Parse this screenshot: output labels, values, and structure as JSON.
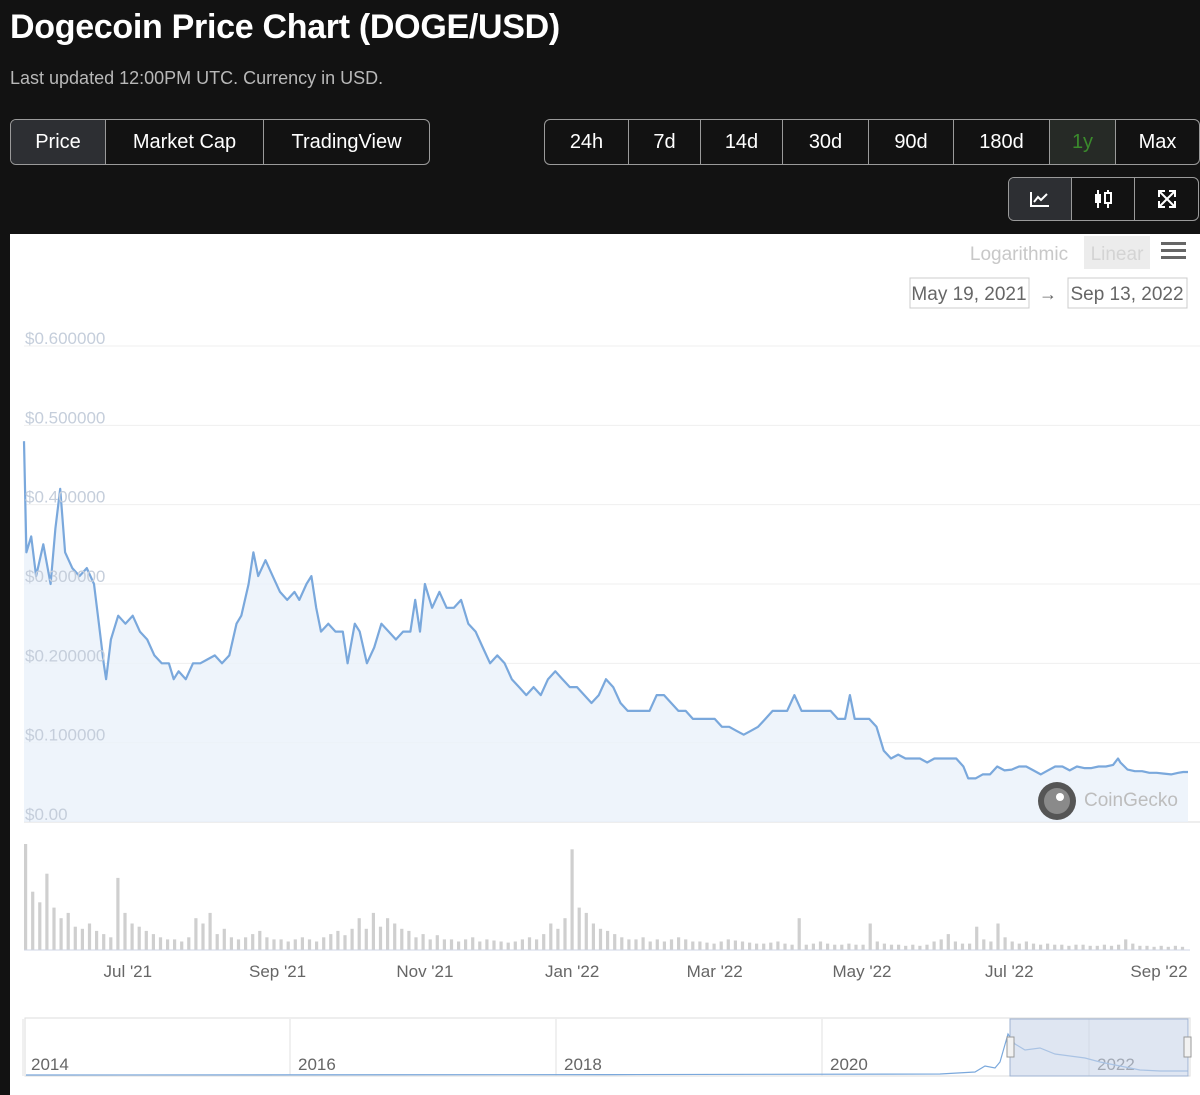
{
  "header": {
    "title": "Dogecoin Price Chart (DOGE/USD)",
    "subtitle": "Last updated 12:00PM UTC. Currency in USD."
  },
  "chart_type_tabs": [
    {
      "label": "Price",
      "active": true
    },
    {
      "label": "Market Cap",
      "active": false
    },
    {
      "label": "TradingView",
      "active": false
    }
  ],
  "range_tabs": [
    {
      "label": "24h",
      "active": false
    },
    {
      "label": "7d",
      "active": false
    },
    {
      "label": "14d",
      "active": false
    },
    {
      "label": "30d",
      "active": false
    },
    {
      "label": "90d",
      "active": false
    },
    {
      "label": "180d",
      "active": false
    },
    {
      "label": "1y",
      "active": true
    },
    {
      "label": "Max",
      "active": false
    }
  ],
  "view_toggle": [
    {
      "icon": "line-chart-icon",
      "active": true
    },
    {
      "icon": "candlestick-icon",
      "active": false
    },
    {
      "icon": "fullscreen-icon",
      "active": false
    }
  ],
  "scale_toggle": {
    "logarithmic": "Logarithmic",
    "linear": "Linear",
    "active": "linear",
    "menu_icon": "hamburger-menu-icon"
  },
  "date_range": {
    "from": "May 19, 2021",
    "arrow": "→",
    "to": "Sep 13, 2022"
  },
  "watermark": {
    "text": "CoinGecko",
    "icon": "coingecko-logo-icon"
  },
  "colors": {
    "line": "#7aa8dc",
    "fill": "#eaf1fa",
    "volume": "#cfcfcf",
    "navigator_fill": "#c9d6ea"
  },
  "chart_data": {
    "type": "area",
    "x_start": "2021-05-19",
    "x_end": "2022-09-13",
    "yticks": [
      "$0.00",
      "$0.100000",
      "$0.200000",
      "$0.300000",
      "$0.400000",
      "$0.500000",
      "$0.600000"
    ],
    "ylim": [
      0,
      0.6
    ],
    "xticks": [
      {
        "label": "Jul '21",
        "date": "2021-07-01"
      },
      {
        "label": "Sep '21",
        "date": "2021-09-01"
      },
      {
        "label": "Nov '21",
        "date": "2021-11-01"
      },
      {
        "label": "Jan '22",
        "date": "2022-01-01"
      },
      {
        "label": "Mar '22",
        "date": "2022-03-01"
      },
      {
        "label": "May '22",
        "date": "2022-05-01"
      },
      {
        "label": "Jul '22",
        "date": "2022-07-01"
      },
      {
        "label": "Sep '22",
        "date": "2022-09-01"
      }
    ],
    "series": [
      {
        "points": [
          [
            "2021-05-19",
            0.48
          ],
          [
            "2021-05-20",
            0.34
          ],
          [
            "2021-05-22",
            0.36
          ],
          [
            "2021-05-24",
            0.31
          ],
          [
            "2021-05-27",
            0.35
          ],
          [
            "2021-05-30",
            0.3
          ],
          [
            "2021-06-01",
            0.37
          ],
          [
            "2021-06-03",
            0.42
          ],
          [
            "2021-06-05",
            0.34
          ],
          [
            "2021-06-08",
            0.32
          ],
          [
            "2021-06-11",
            0.31
          ],
          [
            "2021-06-14",
            0.32
          ],
          [
            "2021-06-17",
            0.3
          ],
          [
            "2021-06-19",
            0.25
          ],
          [
            "2021-06-21",
            0.2
          ],
          [
            "2021-06-22",
            0.18
          ],
          [
            "2021-06-24",
            0.23
          ],
          [
            "2021-06-27",
            0.26
          ],
          [
            "2021-06-30",
            0.25
          ],
          [
            "2021-07-03",
            0.26
          ],
          [
            "2021-07-06",
            0.24
          ],
          [
            "2021-07-09",
            0.23
          ],
          [
            "2021-07-12",
            0.21
          ],
          [
            "2021-07-15",
            0.2
          ],
          [
            "2021-07-18",
            0.2
          ],
          [
            "2021-07-20",
            0.18
          ],
          [
            "2021-07-22",
            0.19
          ],
          [
            "2021-07-25",
            0.18
          ],
          [
            "2021-07-28",
            0.2
          ],
          [
            "2021-07-31",
            0.2
          ],
          [
            "2021-08-03",
            0.205
          ],
          [
            "2021-08-06",
            0.21
          ],
          [
            "2021-08-09",
            0.2
          ],
          [
            "2021-08-12",
            0.21
          ],
          [
            "2021-08-15",
            0.25
          ],
          [
            "2021-08-17",
            0.26
          ],
          [
            "2021-08-20",
            0.3
          ],
          [
            "2021-08-22",
            0.34
          ],
          [
            "2021-08-24",
            0.31
          ],
          [
            "2021-08-27",
            0.33
          ],
          [
            "2021-08-30",
            0.31
          ],
          [
            "2021-09-02",
            0.29
          ],
          [
            "2021-09-05",
            0.28
          ],
          [
            "2021-09-08",
            0.29
          ],
          [
            "2021-09-10",
            0.28
          ],
          [
            "2021-09-13",
            0.3
          ],
          [
            "2021-09-15",
            0.31
          ],
          [
            "2021-09-17",
            0.27
          ],
          [
            "2021-09-19",
            0.24
          ],
          [
            "2021-09-22",
            0.25
          ],
          [
            "2021-09-25",
            0.24
          ],
          [
            "2021-09-28",
            0.24
          ],
          [
            "2021-09-30",
            0.2
          ],
          [
            "2021-10-03",
            0.25
          ],
          [
            "2021-10-05",
            0.24
          ],
          [
            "2021-10-08",
            0.2
          ],
          [
            "2021-10-11",
            0.22
          ],
          [
            "2021-10-14",
            0.25
          ],
          [
            "2021-10-17",
            0.24
          ],
          [
            "2021-10-20",
            0.23
          ],
          [
            "2021-10-23",
            0.24
          ],
          [
            "2021-10-26",
            0.24
          ],
          [
            "2021-10-28",
            0.28
          ],
          [
            "2021-10-30",
            0.24
          ],
          [
            "2021-11-01",
            0.3
          ],
          [
            "2021-11-04",
            0.27
          ],
          [
            "2021-11-07",
            0.29
          ],
          [
            "2021-11-10",
            0.27
          ],
          [
            "2021-11-13",
            0.27
          ],
          [
            "2021-11-16",
            0.28
          ],
          [
            "2021-11-19",
            0.25
          ],
          [
            "2021-11-22",
            0.24
          ],
          [
            "2021-11-25",
            0.22
          ],
          [
            "2021-11-28",
            0.2
          ],
          [
            "2021-12-01",
            0.21
          ],
          [
            "2021-12-04",
            0.2
          ],
          [
            "2021-12-07",
            0.18
          ],
          [
            "2021-12-10",
            0.17
          ],
          [
            "2021-12-13",
            0.16
          ],
          [
            "2021-12-16",
            0.17
          ],
          [
            "2021-12-19",
            0.16
          ],
          [
            "2021-12-22",
            0.18
          ],
          [
            "2021-12-25",
            0.19
          ],
          [
            "2021-12-28",
            0.18
          ],
          [
            "2021-12-31",
            0.17
          ],
          [
            "2022-01-03",
            0.17
          ],
          [
            "2022-01-06",
            0.16
          ],
          [
            "2022-01-09",
            0.15
          ],
          [
            "2022-01-12",
            0.16
          ],
          [
            "2022-01-15",
            0.18
          ],
          [
            "2022-01-18",
            0.17
          ],
          [
            "2022-01-21",
            0.15
          ],
          [
            "2022-01-24",
            0.14
          ],
          [
            "2022-01-27",
            0.14
          ],
          [
            "2022-01-30",
            0.14
          ],
          [
            "2022-02-02",
            0.14
          ],
          [
            "2022-02-05",
            0.16
          ],
          [
            "2022-02-08",
            0.16
          ],
          [
            "2022-02-11",
            0.15
          ],
          [
            "2022-02-14",
            0.14
          ],
          [
            "2022-02-17",
            0.14
          ],
          [
            "2022-02-20",
            0.13
          ],
          [
            "2022-02-23",
            0.13
          ],
          [
            "2022-02-26",
            0.13
          ],
          [
            "2022-03-01",
            0.13
          ],
          [
            "2022-03-04",
            0.12
          ],
          [
            "2022-03-07",
            0.12
          ],
          [
            "2022-03-10",
            0.115
          ],
          [
            "2022-03-13",
            0.11
          ],
          [
            "2022-03-16",
            0.115
          ],
          [
            "2022-03-19",
            0.12
          ],
          [
            "2022-03-22",
            0.13
          ],
          [
            "2022-03-25",
            0.14
          ],
          [
            "2022-03-28",
            0.14
          ],
          [
            "2022-03-31",
            0.14
          ],
          [
            "2022-04-03",
            0.16
          ],
          [
            "2022-04-06",
            0.14
          ],
          [
            "2022-04-09",
            0.14
          ],
          [
            "2022-04-12",
            0.14
          ],
          [
            "2022-04-15",
            0.14
          ],
          [
            "2022-04-18",
            0.14
          ],
          [
            "2022-04-21",
            0.13
          ],
          [
            "2022-04-24",
            0.13
          ],
          [
            "2022-04-26",
            0.16
          ],
          [
            "2022-04-28",
            0.13
          ],
          [
            "2022-05-01",
            0.13
          ],
          [
            "2022-05-04",
            0.13
          ],
          [
            "2022-05-07",
            0.12
          ],
          [
            "2022-05-10",
            0.09
          ],
          [
            "2022-05-13",
            0.08
          ],
          [
            "2022-05-16",
            0.085
          ],
          [
            "2022-05-19",
            0.08
          ],
          [
            "2022-05-22",
            0.08
          ],
          [
            "2022-05-25",
            0.08
          ],
          [
            "2022-05-28",
            0.075
          ],
          [
            "2022-05-31",
            0.08
          ],
          [
            "2022-06-03",
            0.08
          ],
          [
            "2022-06-06",
            0.08
          ],
          [
            "2022-06-09",
            0.08
          ],
          [
            "2022-06-12",
            0.07
          ],
          [
            "2022-06-14",
            0.055
          ],
          [
            "2022-06-17",
            0.055
          ],
          [
            "2022-06-20",
            0.06
          ],
          [
            "2022-06-23",
            0.06
          ],
          [
            "2022-06-26",
            0.07
          ],
          [
            "2022-06-29",
            0.065
          ],
          [
            "2022-07-02",
            0.066
          ],
          [
            "2022-07-05",
            0.07
          ],
          [
            "2022-07-08",
            0.07
          ],
          [
            "2022-07-11",
            0.065
          ],
          [
            "2022-07-14",
            0.06
          ],
          [
            "2022-07-17",
            0.065
          ],
          [
            "2022-07-20",
            0.07
          ],
          [
            "2022-07-23",
            0.07
          ],
          [
            "2022-07-26",
            0.065
          ],
          [
            "2022-07-29",
            0.07
          ],
          [
            "2022-08-01",
            0.068
          ],
          [
            "2022-08-04",
            0.068
          ],
          [
            "2022-08-07",
            0.07
          ],
          [
            "2022-08-10",
            0.07
          ],
          [
            "2022-08-13",
            0.072
          ],
          [
            "2022-08-15",
            0.08
          ],
          [
            "2022-08-16",
            0.075
          ],
          [
            "2022-08-19",
            0.066
          ],
          [
            "2022-08-22",
            0.064
          ],
          [
            "2022-08-25",
            0.064
          ],
          [
            "2022-08-28",
            0.062
          ],
          [
            "2022-08-31",
            0.062
          ],
          [
            "2022-09-03",
            0.061
          ],
          [
            "2022-09-06",
            0.06
          ],
          [
            "2022-09-09",
            0.062
          ],
          [
            "2022-09-11",
            0.063
          ],
          [
            "2022-09-13",
            0.063
          ]
        ]
      }
    ],
    "volume": {
      "type": "bar",
      "units": "relative",
      "values": [
        1.0,
        0.55,
        0.45,
        0.72,
        0.4,
        0.3,
        0.35,
        0.22,
        0.2,
        0.25,
        0.18,
        0.15,
        0.12,
        0.68,
        0.35,
        0.25,
        0.22,
        0.18,
        0.15,
        0.12,
        0.1,
        0.1,
        0.08,
        0.12,
        0.3,
        0.25,
        0.35,
        0.15,
        0.2,
        0.12,
        0.1,
        0.12,
        0.15,
        0.18,
        0.12,
        0.1,
        0.1,
        0.08,
        0.1,
        0.12,
        0.1,
        0.08,
        0.12,
        0.15,
        0.18,
        0.14,
        0.2,
        0.3,
        0.2,
        0.35,
        0.22,
        0.3,
        0.25,
        0.2,
        0.18,
        0.12,
        0.15,
        0.1,
        0.14,
        0.1,
        0.1,
        0.08,
        0.1,
        0.12,
        0.08,
        0.1,
        0.09,
        0.08,
        0.07,
        0.08,
        0.1,
        0.12,
        0.1,
        0.15,
        0.25,
        0.2,
        0.3,
        0.95,
        0.4,
        0.35,
        0.25,
        0.2,
        0.18,
        0.15,
        0.12,
        0.1,
        0.1,
        0.12,
        0.08,
        0.1,
        0.08,
        0.1,
        0.12,
        0.1,
        0.08,
        0.08,
        0.07,
        0.06,
        0.08,
        0.1,
        0.09,
        0.08,
        0.07,
        0.06,
        0.06,
        0.07,
        0.08,
        0.06,
        0.05,
        0.3,
        0.05,
        0.06,
        0.08,
        0.06,
        0.05,
        0.05,
        0.06,
        0.05,
        0.05,
        0.25,
        0.08,
        0.06,
        0.05,
        0.05,
        0.04,
        0.05,
        0.04,
        0.05,
        0.08,
        0.1,
        0.15,
        0.08,
        0.06,
        0.06,
        0.22,
        0.1,
        0.08,
        0.25,
        0.12,
        0.08,
        0.06,
        0.08,
        0.06,
        0.05,
        0.06,
        0.05,
        0.05,
        0.04,
        0.05,
        0.05,
        0.04,
        0.04,
        0.05,
        0.04,
        0.05,
        0.1,
        0.06,
        0.04,
        0.04,
        0.03,
        0.04,
        0.03,
        0.04,
        0.03
      ]
    },
    "navigator": {
      "xticks": [
        "2014",
        "2016",
        "2018",
        "2020",
        "2022"
      ],
      "selection_from": "May 19, 2021",
      "selection_to": "Sep 13, 2022"
    }
  }
}
